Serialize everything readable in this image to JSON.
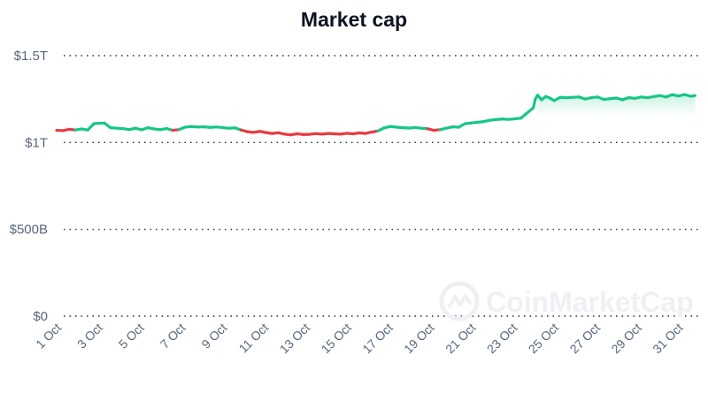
{
  "chart_data": {
    "type": "line",
    "title": "Market cap",
    "xlabel": "",
    "ylabel": "",
    "ylim": [
      0,
      1.5
    ],
    "yunit": "trillion USD",
    "yticks": [
      {
        "value": 0,
        "label": "$0"
      },
      {
        "value": 0.5,
        "label": "$500B"
      },
      {
        "value": 1.0,
        "label": "$1T"
      },
      {
        "value": 1.5,
        "label": "$1.5T"
      }
    ],
    "xlim": [
      1,
      32
    ],
    "xticks": [
      {
        "day": 1,
        "label": "1 Oct"
      },
      {
        "day": 3,
        "label": "3 Oct"
      },
      {
        "day": 5,
        "label": "5 Oct"
      },
      {
        "day": 7,
        "label": "7 Oct"
      },
      {
        "day": 9,
        "label": "9 Oct"
      },
      {
        "day": 11,
        "label": "11 Oct"
      },
      {
        "day": 13,
        "label": "13 Oct"
      },
      {
        "day": 15,
        "label": "15 Oct"
      },
      {
        "day": 17,
        "label": "17 Oct"
      },
      {
        "day": 19,
        "label": "19 Oct"
      },
      {
        "day": 21,
        "label": "21 Oct"
      },
      {
        "day": 23,
        "label": "23 Oct"
      },
      {
        "day": 25,
        "label": "25 Oct"
      },
      {
        "day": 27,
        "label": "27 Oct"
      },
      {
        "day": 29,
        "label": "29 Oct"
      },
      {
        "day": 31,
        "label": "31 Oct"
      }
    ],
    "baseline": 1.075,
    "colors": {
      "up": "#16c784",
      "down": "#ea3943",
      "grid": "#222a38",
      "text": "#58667e",
      "title": "#0d1421"
    },
    "grid": true,
    "series": [
      {
        "x": [
          1.0,
          1.3,
          1.6,
          1.9,
          2.2,
          2.5,
          2.8,
          3.0,
          3.3,
          3.6,
          3.9,
          4.2,
          4.5,
          4.8,
          5.1,
          5.4,
          5.7,
          6.0,
          6.3,
          6.6,
          6.9,
          7.2,
          7.5,
          7.8,
          8.1,
          8.4,
          8.7,
          9.0,
          9.3,
          9.6,
          9.9,
          10.2,
          10.5,
          10.8,
          11.1,
          11.4,
          11.7,
          12.0,
          12.3,
          12.6,
          12.9,
          13.2,
          13.5,
          13.8,
          14.1,
          14.4,
          14.7,
          15.0,
          15.3,
          15.6,
          15.9,
          16.2,
          16.5,
          16.8,
          17.1,
          17.4,
          17.7,
          18.0,
          18.3,
          18.6,
          18.9,
          19.2,
          19.5,
          19.8,
          20.1,
          20.4,
          20.7,
          21.0,
          21.3,
          21.6,
          21.9,
          22.2,
          22.5,
          22.8,
          23.1,
          23.4,
          23.6,
          23.8,
          24.0,
          24.1,
          24.2,
          24.4,
          24.6,
          24.8,
          25.0,
          25.3,
          25.6,
          25.9,
          26.2,
          26.5,
          26.8,
          27.1,
          27.4,
          27.7,
          28.0,
          28.3,
          28.6,
          28.9,
          29.2,
          29.5,
          29.8,
          30.1,
          30.4,
          30.7,
          31.0,
          31.3,
          31.6,
          31.8
        ],
        "y": [
          1.07,
          1.068,
          1.076,
          1.072,
          1.078,
          1.072,
          1.108,
          1.11,
          1.112,
          1.085,
          1.082,
          1.08,
          1.074,
          1.082,
          1.073,
          1.085,
          1.078,
          1.074,
          1.08,
          1.07,
          1.074,
          1.088,
          1.092,
          1.089,
          1.09,
          1.087,
          1.089,
          1.086,
          1.082,
          1.084,
          1.072,
          1.062,
          1.058,
          1.064,
          1.057,
          1.052,
          1.056,
          1.048,
          1.044,
          1.05,
          1.046,
          1.047,
          1.051,
          1.048,
          1.052,
          1.05,
          1.048,
          1.053,
          1.05,
          1.055,
          1.052,
          1.06,
          1.066,
          1.084,
          1.092,
          1.088,
          1.085,
          1.083,
          1.086,
          1.082,
          1.079,
          1.07,
          1.074,
          1.082,
          1.09,
          1.088,
          1.108,
          1.112,
          1.116,
          1.12,
          1.128,
          1.132,
          1.135,
          1.133,
          1.136,
          1.14,
          1.16,
          1.18,
          1.2,
          1.25,
          1.272,
          1.246,
          1.265,
          1.256,
          1.241,
          1.26,
          1.258,
          1.26,
          1.262,
          1.25,
          1.258,
          1.262,
          1.248,
          1.252,
          1.256,
          1.246,
          1.258,
          1.254,
          1.262,
          1.258,
          1.264,
          1.27,
          1.262,
          1.275,
          1.268,
          1.276,
          1.266,
          1.27
        ]
      }
    ],
    "watermark": "CoinMarketCap"
  }
}
